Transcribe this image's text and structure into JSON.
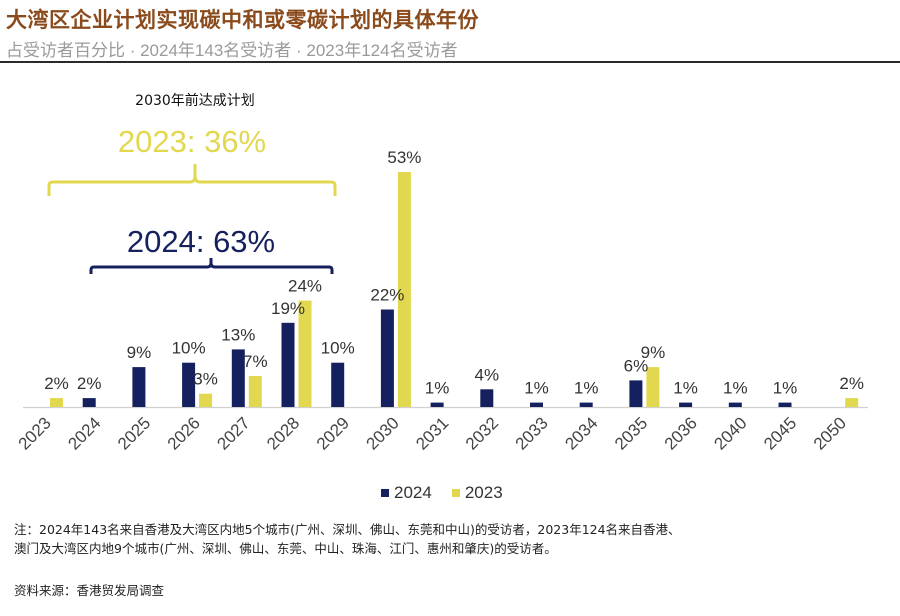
{
  "header": {
    "title": "大湾区企业计划实现碳中和或零碳计划的具体年份",
    "subtitle": "占受访者百分比 · 2024年143名受访者 · 2023年124名受访者"
  },
  "colors": {
    "series_2024": "#15205e",
    "series_2023": "#e2d850",
    "title": "#8a4a1c"
  },
  "annotations": {
    "heading": "2030年前达成计划",
    "label_2023": "2023: 36%",
    "label_2024": "2024: 63%"
  },
  "chart_data": {
    "type": "bar",
    "title": "大湾区企业计划实现碳中和或零碳计划的具体年份",
    "subtitle": "占受访者百分比 · 2024年143名受访者 · 2023年124名受访者",
    "xlabel": "",
    "ylabel": "",
    "ylim": [
      0,
      55
    ],
    "grid": false,
    "legend_position": "bottom-center",
    "categories": [
      "2023",
      "2024",
      "2025",
      "2026",
      "2027",
      "2028",
      "2029",
      "2030",
      "2031",
      "2032",
      "2033",
      "2034",
      "2035",
      "2036",
      "2040",
      "2045",
      "2050"
    ],
    "series": [
      {
        "name": "2024",
        "values": [
          null,
          2,
          9,
          10,
          13,
          19,
          10,
          22,
          1,
          4,
          1,
          1,
          6,
          1,
          1,
          1,
          null
        ]
      },
      {
        "name": "2023",
        "values": [
          2,
          null,
          null,
          3,
          7,
          24,
          null,
          53,
          null,
          null,
          null,
          null,
          9,
          null,
          null,
          null,
          2
        ]
      }
    ],
    "value_suffix": "%"
  },
  "legend": [
    {
      "label": "2024"
    },
    {
      "label": "2023"
    }
  ],
  "footer": {
    "note_line1": "注：2024年143名来自香港及大湾区内地5个城市(广州、深圳、佛山、东莞和中山)的受访者，2023年124名来自香港、",
    "note_line2": "澳门及大湾区内地9个城市(广州、深圳、佛山、东莞、中山、珠海、江门、惠州和肇庆)的受访者。",
    "source": "资料来源：香港贸发局调查"
  }
}
